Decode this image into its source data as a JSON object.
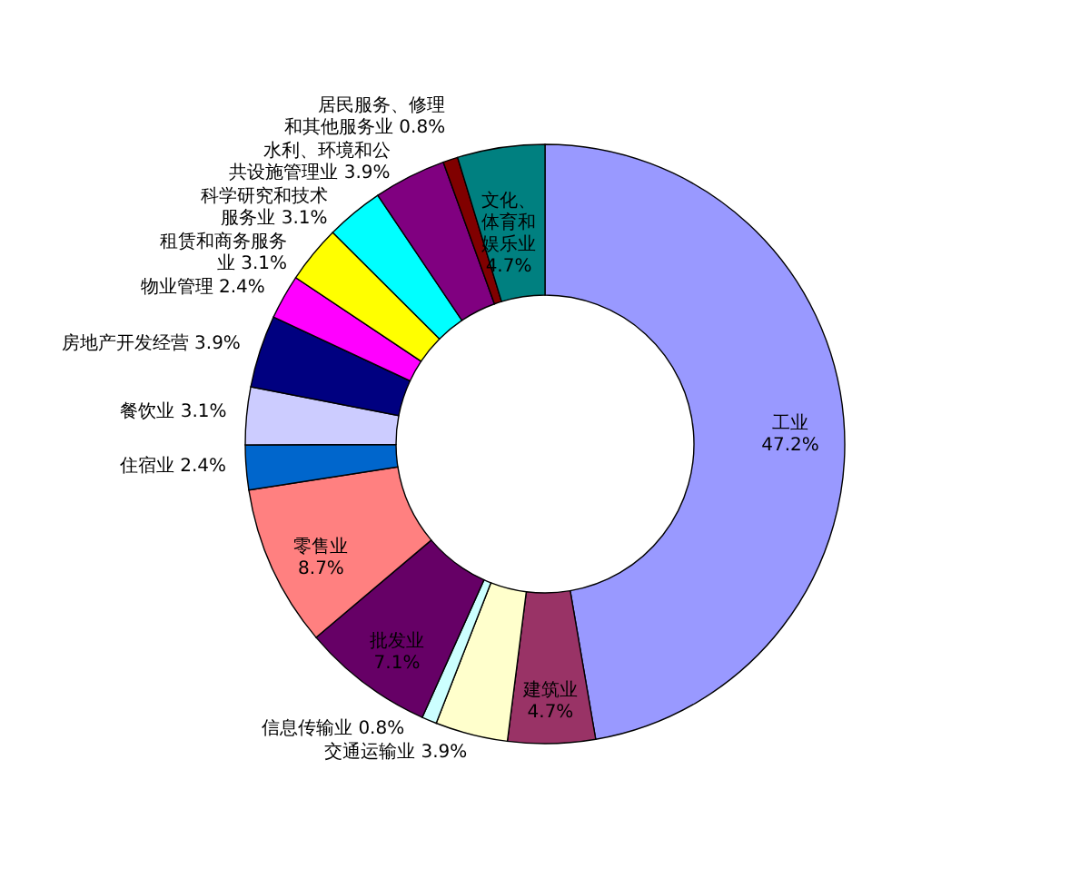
{
  "chart_data": {
    "type": "donut",
    "categories": [
      "工业",
      "建筑业",
      "交通运输业",
      "信息传输业",
      "批发业",
      "零售业",
      "住宿业",
      "餐饮业",
      "房地产开发经营",
      "物业管理",
      "租赁和商务服务业",
      "科学研究和技术服务业",
      "水利、环境和公共设施管理业",
      "居民服务、修理和其他服务业",
      "文化、体育和娱乐业"
    ],
    "values": [
      47.2,
      4.7,
      3.9,
      0.8,
      7.1,
      8.7,
      2.4,
      3.1,
      3.9,
      2.4,
      3.1,
      3.1,
      3.9,
      0.8,
      4.7
    ],
    "value_labels": [
      "47.2%",
      "4.7%",
      "3.9%",
      "0.8%",
      "7.1%",
      "8.7%",
      "2.4%",
      "3.1%",
      "3.9%",
      "2.4%",
      "3.1%",
      "3.1%",
      "3.9%",
      "0.8%",
      "4.7%"
    ],
    "colors": [
      "#9999ff",
      "#993366",
      "#ffffcc",
      "#ccffff",
      "#660066",
      "#ff8080",
      "#0066cc",
      "#ccccff",
      "#000080",
      "#ff00ff",
      "#ffff00",
      "#00ffff",
      "#800080",
      "#800000",
      "#008080"
    ]
  }
}
